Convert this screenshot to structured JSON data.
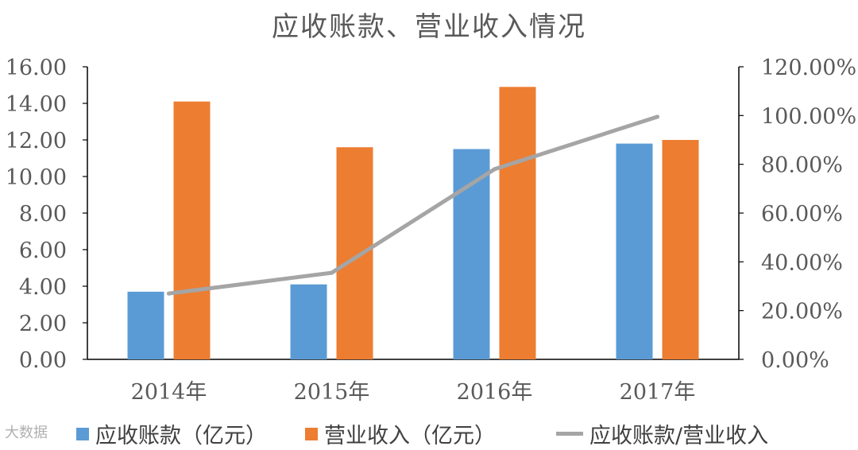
{
  "chart_data": {
    "type": "bar",
    "title": "应收账款、营业收入情况",
    "categories": [
      "2014年",
      "2015年",
      "2016年",
      "2017年"
    ],
    "series": [
      {
        "name": "应收账款（亿元）",
        "type": "bar",
        "axis": "left",
        "color": "#5b9bd5",
        "values": [
          3.7,
          4.1,
          11.5,
          11.8
        ]
      },
      {
        "name": "营业收入（亿元）",
        "type": "bar",
        "axis": "left",
        "color": "#ed7d31",
        "values": [
          14.1,
          11.6,
          14.9,
          12.0
        ]
      },
      {
        "name": "应收账款/营业收入",
        "type": "line",
        "axis": "right",
        "color": "#a5a5a5",
        "values": [
          0.27,
          0.355,
          0.78,
          0.995
        ]
      }
    ],
    "y_left": {
      "min": 0,
      "max": 16,
      "ticks": [
        "0.00",
        "2.00",
        "4.00",
        "6.00",
        "8.00",
        "10.00",
        "12.00",
        "14.00",
        "16.00"
      ]
    },
    "y_right": {
      "min": 0,
      "max": 1.2,
      "ticks": [
        "0.00%",
        "20.00%",
        "40.00%",
        "60.00%",
        "80.00%",
        "100.00%",
        "120.00%"
      ]
    },
    "grid": false,
    "legend_position": "bottom"
  },
  "watermark": "大数据"
}
